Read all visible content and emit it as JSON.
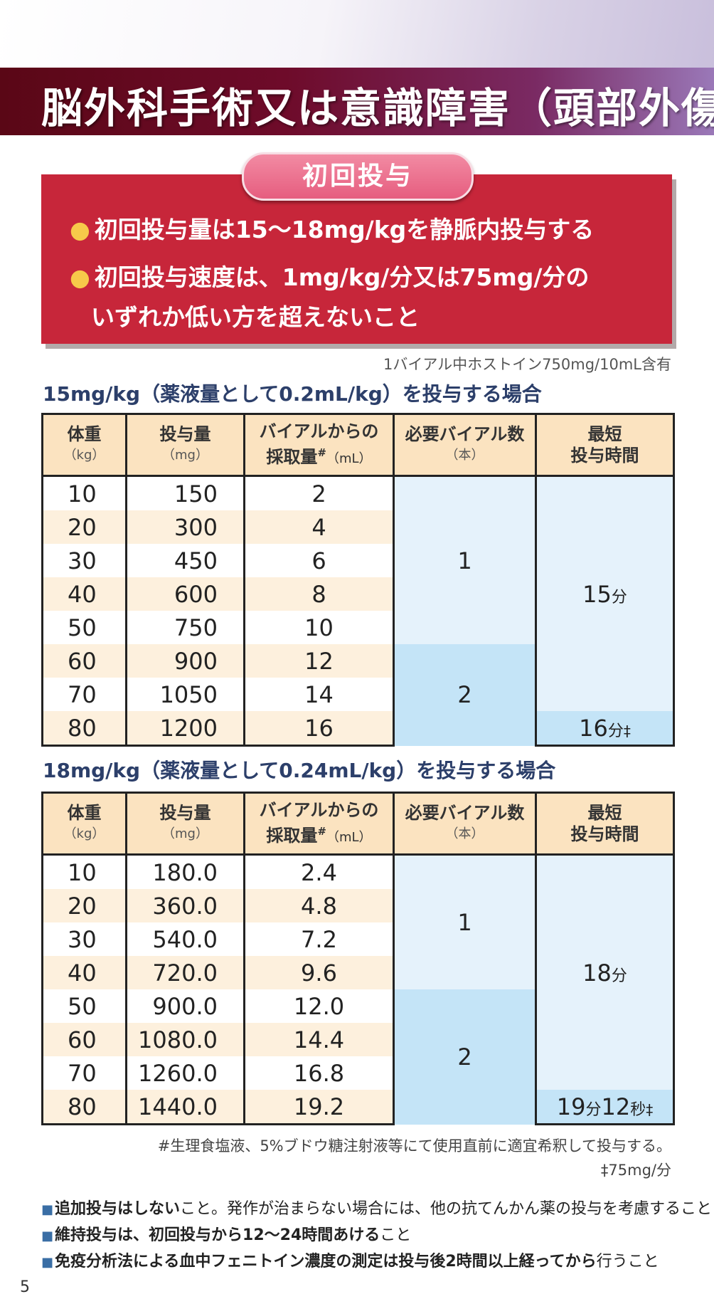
{
  "header": {
    "title": "脳外科手術又は意識障害（頭部外傷"
  },
  "initial": {
    "pill": "初回投与",
    "bullet1": "初回投与量は15〜18mg/kgを静脈内投与する",
    "bullet2_line1": "初回投与速度は、1mg/kg/分又は75mg/分の",
    "bullet2_line2": "いずれか低い方を超えないこと"
  },
  "vial_note": "1バイアル中ホストイン750mg/10mL含有",
  "headers": {
    "weight": "体重",
    "weight_unit": "（kg）",
    "dose": "投与量",
    "dose_unit": "（mg）",
    "vol_line1": "バイアルからの",
    "vol_line2": "採取量",
    "vol_mark": "#",
    "vol_unit": "（mL）",
    "vials": "必要バイアル数",
    "vials_unit": "（本）",
    "time_line1": "最短",
    "time_line2": "投与時間"
  },
  "table1": {
    "title": "15mg/kg（薬液量として0.2mL/kg）を投与する場合",
    "rows": [
      {
        "weight": "10",
        "dose": "150",
        "vol": "2"
      },
      {
        "weight": "20",
        "dose": "300",
        "vol": "4"
      },
      {
        "weight": "30",
        "dose": "450",
        "vol": "6"
      },
      {
        "weight": "40",
        "dose": "600",
        "vol": "8"
      },
      {
        "weight": "50",
        "dose": "750",
        "vol": "10"
      },
      {
        "weight": "60",
        "dose": "900",
        "vol": "12"
      },
      {
        "weight": "70",
        "dose": "1050",
        "vol": "14"
      },
      {
        "weight": "80",
        "dose": "1200",
        "vol": "16"
      }
    ],
    "vials_a": "1",
    "vials_b": "2",
    "time_a_num": "15",
    "time_a_unit": "分",
    "time_b_num": "16",
    "time_b_unit": "分",
    "time_b_mark": "‡"
  },
  "table2": {
    "title": "18mg/kg（薬液量として0.24mL/kg）を投与する場合",
    "rows": [
      {
        "weight": "10",
        "dose": "180.0",
        "vol": "2.4"
      },
      {
        "weight": "20",
        "dose": "360.0",
        "vol": "4.8"
      },
      {
        "weight": "30",
        "dose": "540.0",
        "vol": "7.2"
      },
      {
        "weight": "40",
        "dose": "720.0",
        "vol": "9.6"
      },
      {
        "weight": "50",
        "dose": "900.0",
        "vol": "12.0"
      },
      {
        "weight": "60",
        "dose": "1080.0",
        "vol": "14.4"
      },
      {
        "weight": "70",
        "dose": "1260.0",
        "vol": "16.8"
      },
      {
        "weight": "80",
        "dose": "1440.0",
        "vol": "19.2"
      }
    ],
    "vials_a": "1",
    "vials_b": "2",
    "time_a_num": "18",
    "time_a_unit": "分",
    "time_b_num1": "19",
    "time_b_unit1": "分",
    "time_b_num2": "12",
    "time_b_unit2": "秒",
    "time_b_mark": "‡"
  },
  "footnotes": {
    "hash": "#生理食塩液、5%ブドウ糖注射液等にて使用直前に適宜希釈して投与する。",
    "dagger": "‡75mg/分"
  },
  "notes": [
    {
      "strong": "追加投与はしない",
      "rest": "こと。発作が治まらない場合には、他の抗てんかん薬の投与を考慮すること"
    },
    {
      "strong": "維持投与は、初回投与から12〜24時間あける",
      "rest": "こと"
    },
    {
      "strong": "免疫分析法による血中フェニトイン濃度の測定は投与後2時間以上経ってから",
      "rest": "行うこと"
    }
  ],
  "page_number": "5",
  "colors": {
    "title_band": "#6e0b2a",
    "red_box": "#c7263a",
    "pill": "#e65d7f",
    "header_cell": "#fbe3c0",
    "row_alt": "#fdf0dd",
    "vial_light": "#e5f2fb",
    "vial_dark": "#c4e4f7",
    "section_title": "#2c3f6a"
  }
}
